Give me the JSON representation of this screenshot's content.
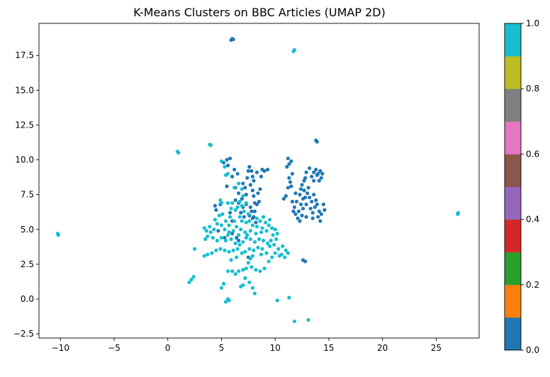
{
  "chart_data": {
    "type": "scatter",
    "title": "K-Means Clusters on BBC Articles (UMAP 2D)",
    "xlabel": "",
    "ylabel": "",
    "xlim": [
      -12.0,
      29.0
    ],
    "ylim": [
      -2.8,
      19.8
    ],
    "x_ticks": [
      -10,
      -5,
      0,
      5,
      10,
      15,
      20,
      25
    ],
    "x_tick_labels": [
      "−10",
      "−5",
      "0",
      "5",
      "10",
      "15",
      "20",
      "25"
    ],
    "y_ticks": [
      -2.5,
      0.0,
      2.5,
      5.0,
      7.5,
      10.0,
      12.5,
      15.0,
      17.5
    ],
    "y_tick_labels": [
      "−2.5",
      "0.0",
      "2.5",
      "5.0",
      "7.5",
      "10.0",
      "12.5",
      "15.0",
      "17.5"
    ],
    "grid": false,
    "colorbar": {
      "cmap": "tab10",
      "range": [
        0.0,
        1.0
      ],
      "ticks": [
        0.0,
        0.2,
        0.4,
        0.6,
        0.8,
        1.0
      ],
      "tick_labels": [
        "0.0",
        "0.2",
        "0.4",
        "0.6",
        "0.8",
        "1.0"
      ],
      "colors": [
        "#1f77b4",
        "#ff7f0e",
        "#2ca02c",
        "#d62728",
        "#9467bd",
        "#8c564b",
        "#e377c2",
        "#7f7f7f",
        "#bcbd22",
        "#17becf"
      ]
    },
    "clusters": [
      {
        "label_value": 0.0,
        "color": "#1f77b4",
        "points": [
          [
            6.0,
            18.7
          ],
          [
            5.9,
            18.6
          ],
          [
            6.1,
            18.65
          ],
          [
            13.9,
            11.3
          ],
          [
            13.8,
            11.4
          ],
          [
            5.5,
            10.0
          ],
          [
            5.8,
            10.1
          ],
          [
            5.2,
            9.8
          ],
          [
            5.6,
            9.6
          ],
          [
            6.2,
            9.3
          ],
          [
            6.5,
            9.0
          ],
          [
            6.0,
            8.8
          ],
          [
            5.5,
            8.1
          ],
          [
            6.3,
            8.0
          ],
          [
            6.6,
            7.6
          ],
          [
            6.9,
            7.2
          ],
          [
            6.6,
            6.9
          ],
          [
            7.0,
            8.3
          ],
          [
            7.2,
            8.0
          ],
          [
            7.3,
            7.5
          ],
          [
            7.4,
            8.7
          ],
          [
            7.5,
            9.2
          ],
          [
            7.6,
            9.5
          ],
          [
            7.8,
            9.2
          ],
          [
            7.9,
            8.8
          ],
          [
            7.7,
            8.2
          ],
          [
            7.9,
            7.8
          ],
          [
            8.0,
            7.4
          ],
          [
            8.1,
            6.9
          ],
          [
            7.7,
            6.6
          ],
          [
            7.8,
            6.3
          ],
          [
            7.6,
            6.0
          ],
          [
            8.1,
            6.3
          ],
          [
            8.3,
            6.8
          ],
          [
            8.5,
            7.0
          ],
          [
            8.4,
            7.6
          ],
          [
            8.6,
            7.9
          ],
          [
            8.0,
            8.5
          ],
          [
            8.3,
            9.1
          ],
          [
            8.8,
            9.3
          ],
          [
            9.0,
            9.2
          ],
          [
            9.3,
            9.3
          ],
          [
            8.7,
            8.8
          ],
          [
            7.3,
            6.8
          ],
          [
            6.8,
            6.2
          ],
          [
            7.1,
            5.9
          ],
          [
            7.9,
            5.8
          ],
          [
            8.2,
            5.5
          ],
          [
            8.0,
            5.9
          ],
          [
            7.0,
            6.6
          ],
          [
            6.3,
            7.1
          ],
          [
            4.9,
            6.8
          ],
          [
            4.5,
            6.4
          ],
          [
            4.4,
            6.7
          ],
          [
            6.0,
            5.6
          ],
          [
            5.8,
            6.2
          ],
          [
            4.7,
            4.9
          ],
          [
            6.4,
            4.4
          ],
          [
            6.6,
            4.2
          ],
          [
            7.5,
            3.0
          ],
          [
            5.3,
            4.4
          ],
          [
            6.0,
            4.7
          ],
          [
            11.2,
            10.1
          ],
          [
            11.3,
            9.7
          ],
          [
            11.1,
            9.5
          ],
          [
            11.5,
            9.9
          ],
          [
            11.6,
            9.0
          ],
          [
            11.3,
            8.7
          ],
          [
            11.4,
            8.4
          ],
          [
            11.5,
            8.1
          ],
          [
            11.2,
            8.0
          ],
          [
            11.0,
            7.4
          ],
          [
            10.8,
            7.2
          ],
          [
            11.6,
            7.0
          ],
          [
            11.8,
            6.6
          ],
          [
            11.7,
            6.3
          ],
          [
            11.9,
            6.1
          ],
          [
            12.2,
            6.3
          ],
          [
            12.4,
            6.8
          ],
          [
            12.6,
            7.2
          ],
          [
            12.3,
            7.5
          ],
          [
            12.0,
            7.0
          ],
          [
            12.1,
            5.8
          ],
          [
            12.3,
            5.6
          ],
          [
            12.5,
            6.0
          ],
          [
            12.6,
            6.5
          ],
          [
            12.9,
            6.8
          ],
          [
            12.8,
            7.3
          ],
          [
            13.0,
            7.6
          ],
          [
            13.2,
            7.3
          ],
          [
            13.4,
            7.0
          ],
          [
            13.3,
            6.5
          ],
          [
            13.5,
            6.2
          ],
          [
            13.7,
            6.6
          ],
          [
            13.9,
            6.8
          ],
          [
            14.1,
            6.3
          ],
          [
            14.3,
            6.1
          ],
          [
            14.0,
            5.9
          ],
          [
            14.2,
            5.6
          ],
          [
            13.8,
            7.1
          ],
          [
            13.6,
            7.5
          ],
          [
            13.1,
            8.0
          ],
          [
            12.7,
            8.5
          ],
          [
            12.5,
            8.2
          ],
          [
            12.8,
            8.7
          ],
          [
            13.4,
            8.8
          ],
          [
            13.6,
            9.1
          ],
          [
            13.8,
            9.3
          ],
          [
            14.0,
            9.0
          ],
          [
            14.2,
            9.2
          ],
          [
            14.4,
            9.0
          ],
          [
            14.3,
            8.7
          ],
          [
            14.1,
            8.5
          ],
          [
            13.9,
            8.9
          ],
          [
            13.6,
            8.5
          ],
          [
            13.2,
            9.4
          ],
          [
            12.9,
            9.1
          ],
          [
            14.6,
            6.4
          ],
          [
            14.5,
            6.8
          ],
          [
            12.7,
            7.8
          ],
          [
            11.9,
            7.6
          ],
          [
            12.4,
            7.9
          ],
          [
            13.5,
            5.8
          ],
          [
            12.9,
            5.9
          ],
          [
            12.6,
            2.8
          ],
          [
            12.8,
            2.7
          ]
        ]
      },
      {
        "label_value": 1.0,
        "color": "#17becf",
        "points": [
          [
            11.8,
            17.9
          ],
          [
            11.7,
            17.8
          ],
          [
            1.0,
            10.5
          ],
          [
            0.9,
            10.6
          ],
          [
            3.9,
            11.1
          ],
          [
            4.0,
            11.05
          ],
          [
            27.0,
            6.1
          ],
          [
            27.05,
            6.2
          ],
          [
            -10.2,
            4.6
          ],
          [
            -10.25,
            4.7
          ],
          [
            5.0,
            9.9
          ],
          [
            5.3,
            9.5
          ],
          [
            5.6,
            9.0
          ],
          [
            5.4,
            8.9
          ],
          [
            6.2,
            8.0
          ],
          [
            6.6,
            8.3
          ],
          [
            6.9,
            7.9
          ],
          [
            7.0,
            7.4
          ],
          [
            6.7,
            7.0
          ],
          [
            6.5,
            6.6
          ],
          [
            7.1,
            6.3
          ],
          [
            7.3,
            6.9
          ],
          [
            6.3,
            6.4
          ],
          [
            6.0,
            6.9
          ],
          [
            4.9,
            7.1
          ],
          [
            5.0,
            6.9
          ],
          [
            5.6,
            6.9
          ],
          [
            5.9,
            6.5
          ],
          [
            5.1,
            6.1
          ],
          [
            5.4,
            5.6
          ],
          [
            5.7,
            5.3
          ],
          [
            6.2,
            5.6
          ],
          [
            6.7,
            5.9
          ],
          [
            6.9,
            5.6
          ],
          [
            7.3,
            5.5
          ],
          [
            7.6,
            5.6
          ],
          [
            7.9,
            5.3
          ],
          [
            8.3,
            5.2
          ],
          [
            8.6,
            5.6
          ],
          [
            8.9,
            5.9
          ],
          [
            9.1,
            5.5
          ],
          [
            9.4,
            5.3
          ],
          [
            9.7,
            5.1
          ],
          [
            10.0,
            5.0
          ],
          [
            9.2,
            4.9
          ],
          [
            8.7,
            4.8
          ],
          [
            8.2,
            4.7
          ],
          [
            7.7,
            4.9
          ],
          [
            7.2,
            4.8
          ],
          [
            6.8,
            5.0
          ],
          [
            6.4,
            5.2
          ],
          [
            6.1,
            4.9
          ],
          [
            5.7,
            4.8
          ],
          [
            5.3,
            5.0
          ],
          [
            5.0,
            5.3
          ],
          [
            4.6,
            5.4
          ],
          [
            4.3,
            5.0
          ],
          [
            4.0,
            4.8
          ],
          [
            3.7,
            4.5
          ],
          [
            3.5,
            4.3
          ],
          [
            3.6,
            4.9
          ],
          [
            3.4,
            5.1
          ],
          [
            4.2,
            4.4
          ],
          [
            4.6,
            4.2
          ],
          [
            5.0,
            4.4
          ],
          [
            5.4,
            4.2
          ],
          [
            5.9,
            4.3
          ],
          [
            6.3,
            4.0
          ],
          [
            6.7,
            3.9
          ],
          [
            7.0,
            4.1
          ],
          [
            7.3,
            4.4
          ],
          [
            7.7,
            4.3
          ],
          [
            8.1,
            4.1
          ],
          [
            8.5,
            4.3
          ],
          [
            8.9,
            4.2
          ],
          [
            9.3,
            4.0
          ],
          [
            9.6,
            4.2
          ],
          [
            9.9,
            3.9
          ],
          [
            10.3,
            3.6
          ],
          [
            10.6,
            3.2
          ],
          [
            10.9,
            3.0
          ],
          [
            11.2,
            3.3
          ],
          [
            11.0,
            3.5
          ],
          [
            10.4,
            3.1
          ],
          [
            10.0,
            3.3
          ],
          [
            9.7,
            3.0
          ],
          [
            9.4,
            2.7
          ],
          [
            9.2,
            3.3
          ],
          [
            8.8,
            3.6
          ],
          [
            8.4,
            3.7
          ],
          [
            8.0,
            3.5
          ],
          [
            7.6,
            3.6
          ],
          [
            7.2,
            3.4
          ],
          [
            6.9,
            3.3
          ],
          [
            6.5,
            3.6
          ],
          [
            6.1,
            3.5
          ],
          [
            5.7,
            3.4
          ],
          [
            5.3,
            3.5
          ],
          [
            4.9,
            3.6
          ],
          [
            4.5,
            3.5
          ],
          [
            4.1,
            3.3
          ],
          [
            3.7,
            3.2
          ],
          [
            3.4,
            3.1
          ],
          [
            2.5,
            3.6
          ],
          [
            7.7,
            2.9
          ],
          [
            7.5,
            2.6
          ],
          [
            7.8,
            2.3
          ],
          [
            7.3,
            2.2
          ],
          [
            7.0,
            2.1
          ],
          [
            6.6,
            2.0
          ],
          [
            6.3,
            1.8
          ],
          [
            6.0,
            2.0
          ],
          [
            5.6,
            2.0
          ],
          [
            8.2,
            2.1
          ],
          [
            8.6,
            2.0
          ],
          [
            9.0,
            2.2
          ],
          [
            7.2,
            1.5
          ],
          [
            7.6,
            1.2
          ],
          [
            7.0,
            1.0
          ],
          [
            6.8,
            0.9
          ],
          [
            7.9,
            0.8
          ],
          [
            8.1,
            0.4
          ],
          [
            5.2,
            1.1
          ],
          [
            5.0,
            0.8
          ],
          [
            5.6,
            0.0
          ],
          [
            5.4,
            -0.2
          ],
          [
            5.7,
            -0.1
          ],
          [
            2.0,
            1.2
          ],
          [
            2.2,
            1.4
          ],
          [
            2.4,
            1.6
          ],
          [
            10.2,
            -0.1
          ],
          [
            11.3,
            0.1
          ],
          [
            11.8,
            -1.6
          ],
          [
            13.1,
            -1.5
          ],
          [
            7.9,
            3.1
          ],
          [
            8.7,
            3.2
          ],
          [
            9.5,
            3.8
          ],
          [
            10.7,
            3.8
          ],
          [
            6.4,
            3.0
          ],
          [
            5.9,
            2.8
          ],
          [
            9.8,
            4.6
          ],
          [
            10.1,
            4.3
          ],
          [
            8.3,
            5.8
          ],
          [
            7.5,
            6.1
          ],
          [
            6.9,
            6.7
          ],
          [
            5.8,
            5.9
          ],
          [
            4.8,
            6.0
          ],
          [
            4.4,
            5.7
          ],
          [
            3.9,
            5.2
          ],
          [
            7.4,
            4.6
          ],
          [
            6.6,
            4.6
          ],
          [
            5.6,
            4.6
          ],
          [
            8.8,
            5.1
          ],
          [
            9.5,
            5.7
          ],
          [
            10.2,
            4.7
          ]
        ]
      }
    ]
  }
}
